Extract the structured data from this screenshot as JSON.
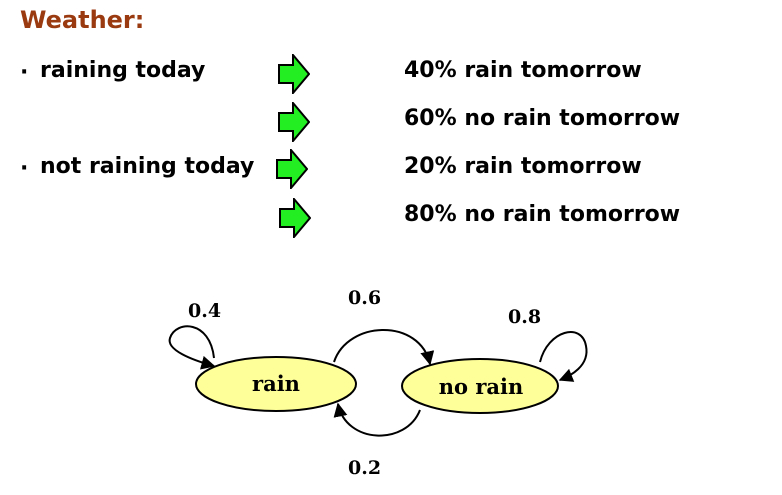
{
  "title": "Weather:",
  "rows": [
    {
      "condition": "raining today",
      "outcome": "40% rain tomorrow"
    },
    {
      "condition": "",
      "outcome": "60% no rain tomorrow"
    },
    {
      "condition": "not raining today",
      "outcome": "20% rain tomorrow"
    },
    {
      "condition": "",
      "outcome": "80% no rain tomorrow"
    }
  ],
  "diagram": {
    "nodes": [
      "rain",
      "no rain"
    ],
    "edges": {
      "rain_self": "0.4",
      "rain_to_no_rain": "0.6",
      "no_rain_self": "0.8",
      "no_rain_to_rain": "0.2"
    }
  },
  "colors": {
    "title": "#9a3a10",
    "arrow_fill": "#22ee22",
    "node_fill": "#ffff99"
  }
}
